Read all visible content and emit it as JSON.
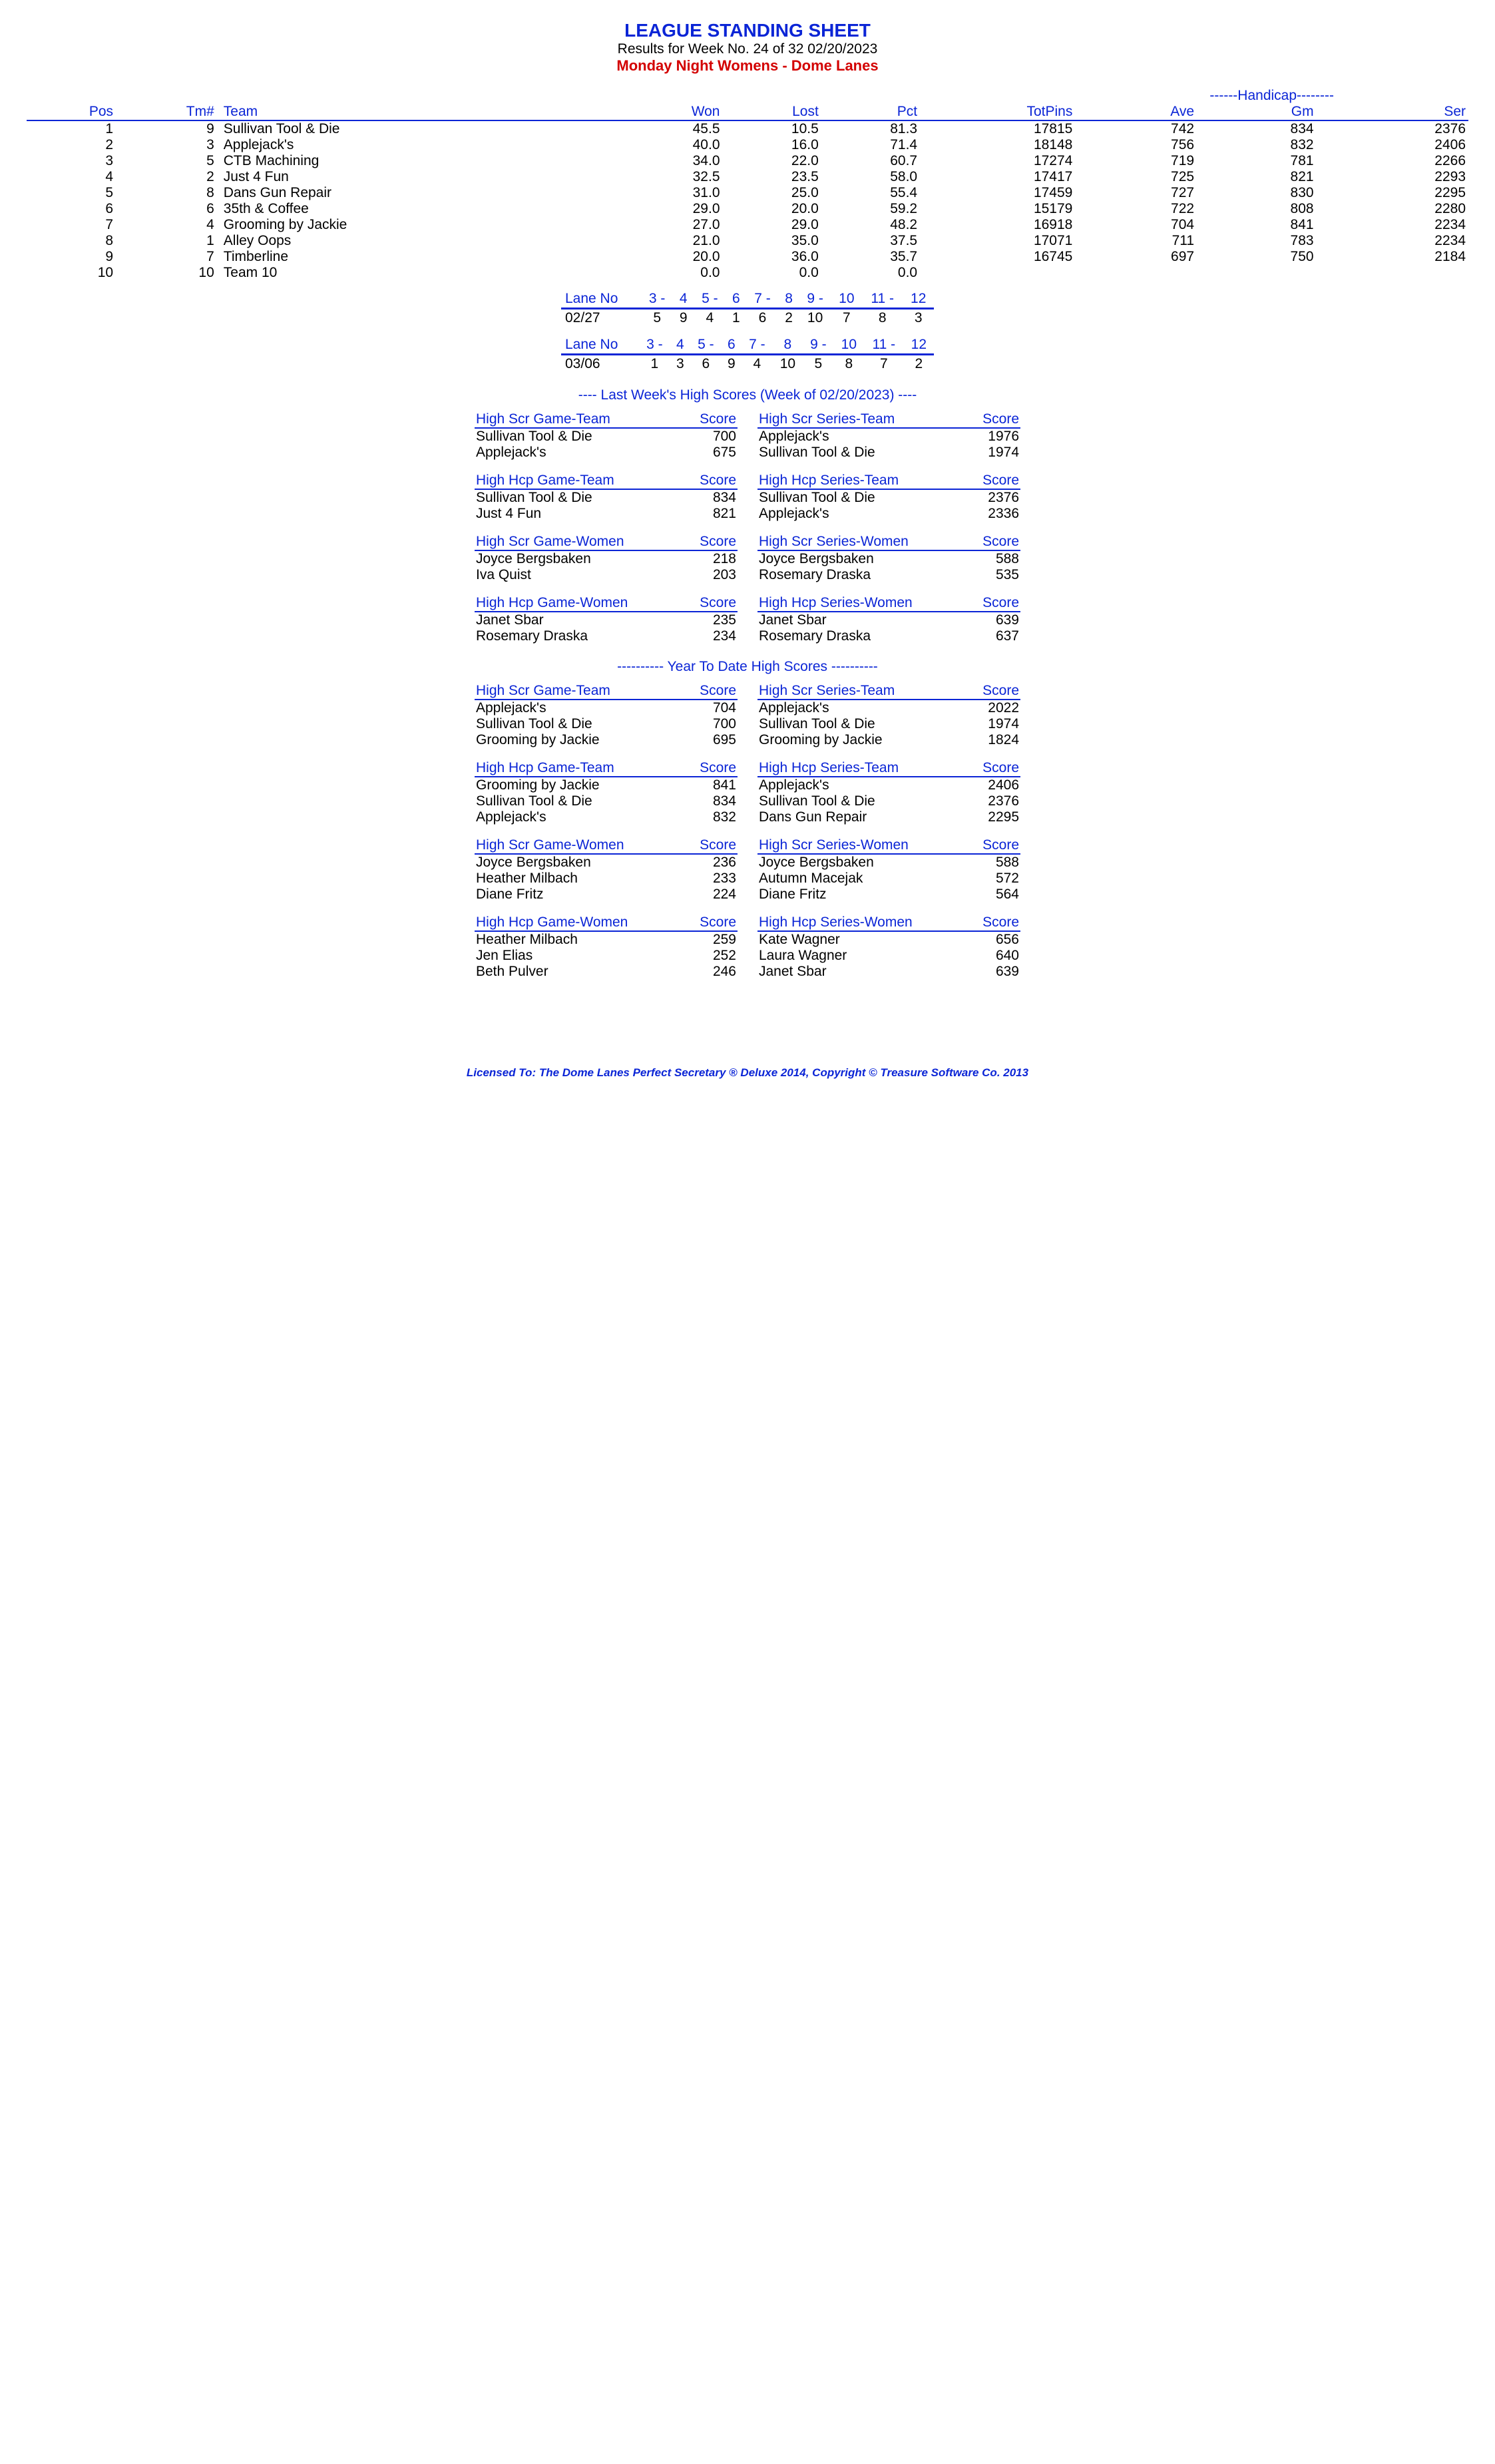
{
  "header": {
    "title": "LEAGUE STANDING SHEET",
    "subtitle": "Results for Week No. 24 of 32    02/20/2023",
    "league": "Monday Night Womens - Dome Lanes"
  },
  "standings": {
    "handicap_label": "------Handicap--------",
    "cols": [
      "Pos",
      "Tm#",
      "Team",
      "Won",
      "Lost",
      "Pct",
      "TotPins",
      "Ave",
      "Gm",
      "Ser"
    ],
    "rows": [
      [
        "1",
        "9",
        "Sullivan Tool & Die",
        "45.5",
        "10.5",
        "81.3",
        "17815",
        "742",
        "834",
        "2376"
      ],
      [
        "2",
        "3",
        "Applejack's",
        "40.0",
        "16.0",
        "71.4",
        "18148",
        "756",
        "832",
        "2406"
      ],
      [
        "3",
        "5",
        "CTB Machining",
        "34.0",
        "22.0",
        "60.7",
        "17274",
        "719",
        "781",
        "2266"
      ],
      [
        "4",
        "2",
        "Just 4 Fun",
        "32.5",
        "23.5",
        "58.0",
        "17417",
        "725",
        "821",
        "2293"
      ],
      [
        "5",
        "8",
        "Dans Gun Repair",
        "31.0",
        "25.0",
        "55.4",
        "17459",
        "727",
        "830",
        "2295"
      ],
      [
        "6",
        "6",
        "35th & Coffee",
        "29.0",
        "20.0",
        "59.2",
        "15179",
        "722",
        "808",
        "2280"
      ],
      [
        "7",
        "4",
        "Grooming by Jackie",
        "27.0",
        "29.0",
        "48.2",
        "16918",
        "704",
        "841",
        "2234"
      ],
      [
        "8",
        "1",
        "Alley Oops",
        "21.0",
        "35.0",
        "37.5",
        "17071",
        "711",
        "783",
        "2234"
      ],
      [
        "9",
        "7",
        "Timberline",
        "20.0",
        "36.0",
        "35.7",
        "16745",
        "697",
        "750",
        "2184"
      ],
      [
        "10",
        "10",
        "Team 10",
        "0.0",
        "0.0",
        "0.0",
        "",
        "",
        "",
        ""
      ]
    ]
  },
  "lanes": [
    {
      "label": "Lane No",
      "cols": [
        "3 -",
        "4",
        "5 -",
        "6",
        "7 -",
        "8",
        "9 -",
        "10",
        "11 -",
        "12"
      ],
      "date": "02/27",
      "vals": [
        "5",
        "9",
        "4",
        "1",
        "6",
        "2",
        "10",
        "7",
        "8",
        "3"
      ]
    },
    {
      "label": "Lane No",
      "cols": [
        "3 -",
        "4",
        "5 -",
        "6",
        "7 -",
        "8",
        "9 -",
        "10",
        "11 -",
        "12"
      ],
      "date": "03/06",
      "vals": [
        "1",
        "3",
        "6",
        "9",
        "4",
        "10",
        "5",
        "8",
        "7",
        "2"
      ]
    }
  ],
  "last_week_title": "----  Last Week's High Scores   (Week of 02/20/2023)  ----",
  "ytd_title": "---------- Year To Date High Scores ----------",
  "last_week": [
    {
      "left": {
        "title": "High Scr Game-Team",
        "score": "Score",
        "rows": [
          [
            "Sullivan Tool & Die",
            "700"
          ],
          [
            "Applejack's",
            "675"
          ]
        ]
      },
      "right": {
        "title": "High Scr Series-Team",
        "score": "Score",
        "rows": [
          [
            "Applejack's",
            "1976"
          ],
          [
            "Sullivan Tool & Die",
            "1974"
          ]
        ]
      }
    },
    {
      "left": {
        "title": "High Hcp Game-Team",
        "score": "Score",
        "rows": [
          [
            "Sullivan Tool & Die",
            "834"
          ],
          [
            "Just 4 Fun",
            "821"
          ]
        ]
      },
      "right": {
        "title": "High Hcp Series-Team",
        "score": "Score",
        "rows": [
          [
            "Sullivan Tool & Die",
            "2376"
          ],
          [
            "Applejack's",
            "2336"
          ]
        ]
      }
    },
    {
      "left": {
        "title": "High Scr Game-Women",
        "score": "Score",
        "rows": [
          [
            "Joyce Bergsbaken",
            "218"
          ],
          [
            "Iva Quist",
            "203"
          ]
        ]
      },
      "right": {
        "title": "High Scr Series-Women",
        "score": "Score",
        "rows": [
          [
            "Joyce Bergsbaken",
            "588"
          ],
          [
            "Rosemary Draska",
            "535"
          ]
        ]
      }
    },
    {
      "left": {
        "title": "High Hcp Game-Women",
        "score": "Score",
        "rows": [
          [
            "Janet Sbar",
            "235"
          ],
          [
            "Rosemary Draska",
            "234"
          ]
        ]
      },
      "right": {
        "title": "High Hcp Series-Women",
        "score": "Score",
        "rows": [
          [
            "Janet Sbar",
            "639"
          ],
          [
            "Rosemary Draska",
            "637"
          ]
        ]
      }
    }
  ],
  "ytd": [
    {
      "left": {
        "title": "High Scr Game-Team",
        "score": "Score",
        "rows": [
          [
            "Applejack's",
            "704"
          ],
          [
            "Sullivan Tool & Die",
            "700"
          ],
          [
            "Grooming by Jackie",
            "695"
          ]
        ]
      },
      "right": {
        "title": "High Scr Series-Team",
        "score": "Score",
        "rows": [
          [
            "Applejack's",
            "2022"
          ],
          [
            "Sullivan Tool & Die",
            "1974"
          ],
          [
            "Grooming by Jackie",
            "1824"
          ]
        ]
      }
    },
    {
      "left": {
        "title": "High Hcp Game-Team",
        "score": "Score",
        "rows": [
          [
            "Grooming by Jackie",
            "841"
          ],
          [
            "Sullivan Tool & Die",
            "834"
          ],
          [
            "Applejack's",
            "832"
          ]
        ]
      },
      "right": {
        "title": "High Hcp Series-Team",
        "score": "Score",
        "rows": [
          [
            "Applejack's",
            "2406"
          ],
          [
            "Sullivan Tool & Die",
            "2376"
          ],
          [
            "Dans Gun Repair",
            "2295"
          ]
        ]
      }
    },
    {
      "left": {
        "title": "High Scr Game-Women",
        "score": "Score",
        "rows": [
          [
            "Joyce Bergsbaken",
            "236"
          ],
          [
            "Heather Milbach",
            "233"
          ],
          [
            "Diane Fritz",
            "224"
          ]
        ]
      },
      "right": {
        "title": "High Scr Series-Women",
        "score": "Score",
        "rows": [
          [
            "Joyce Bergsbaken",
            "588"
          ],
          [
            "Autumn Macejak",
            "572"
          ],
          [
            "Diane Fritz",
            "564"
          ]
        ]
      }
    },
    {
      "left": {
        "title": "High Hcp Game-Women",
        "score": "Score",
        "rows": [
          [
            "Heather Milbach",
            "259"
          ],
          [
            "Jen Elias",
            "252"
          ],
          [
            "Beth Pulver",
            "246"
          ]
        ]
      },
      "right": {
        "title": "High Hcp Series-Women",
        "score": "Score",
        "rows": [
          [
            "Kate Wagner",
            "656"
          ],
          [
            "Laura Wagner",
            "640"
          ],
          [
            "Janet Sbar",
            "639"
          ]
        ]
      }
    }
  ],
  "footer": "Licensed To: The Dome Lanes    Perfect Secretary ® Deluxe  2014, Copyright © Treasure Software Co. 2013"
}
